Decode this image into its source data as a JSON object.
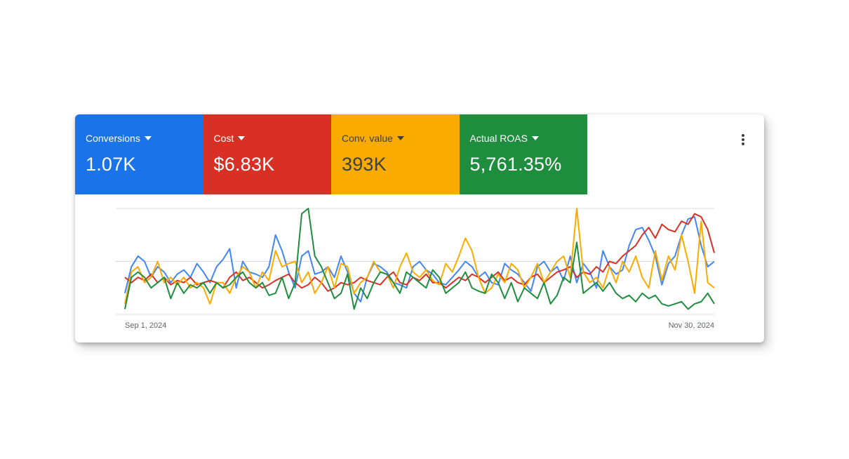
{
  "metrics": [
    {
      "label": "Conversions",
      "value": "1.07K",
      "color": "#1a73e8",
      "text_color": "#ffffff"
    },
    {
      "label": "Cost",
      "value": "$6.83K",
      "color": "#d93025",
      "text_color": "#ffffff"
    },
    {
      "label": "Conv. value",
      "value": "393K",
      "color": "#f9ab00",
      "text_color": "#3c4043"
    },
    {
      "label": "Actual ROAS",
      "value": "5,761.35%",
      "color": "#1e8e3e",
      "text_color": "#ffffff"
    }
  ],
  "chart_data": {
    "type": "line",
    "categories": [
      "Sep 1, 2024",
      null,
      null,
      null,
      null,
      null,
      null,
      null,
      null,
      null,
      null,
      null,
      null,
      null,
      null,
      null,
      null,
      null,
      null,
      null,
      null,
      null,
      null,
      null,
      null,
      null,
      null,
      null,
      null,
      null,
      null,
      null,
      null,
      null,
      null,
      null,
      null,
      null,
      null,
      null,
      null,
      null,
      null,
      null,
      null,
      null,
      null,
      null,
      null,
      null,
      null,
      null,
      null,
      null,
      null,
      null,
      null,
      null,
      null,
      null,
      null,
      null,
      null,
      null,
      null,
      null,
      null,
      null,
      null,
      null,
      null,
      null,
      null,
      null,
      null,
      null,
      null,
      null,
      null,
      null,
      null,
      null,
      null,
      null,
      null,
      null,
      null,
      null,
      null,
      null,
      "Nov 30, 2024"
    ],
    "ylim": [
      0,
      100
    ],
    "gridlines": [
      0,
      50,
      100
    ],
    "grid": true,
    "series": [
      {
        "color": "#4285f4",
        "values": [
          20,
          45,
          55,
          50,
          35,
          45,
          40,
          30,
          38,
          42,
          35,
          48,
          40,
          30,
          45,
          52,
          62,
          25,
          50,
          40,
          38,
          35,
          45,
          75,
          60,
          40,
          25,
          55,
          60,
          38,
          40,
          45,
          35,
          55,
          40,
          20,
          12,
          35,
          48,
          45,
          40,
          30,
          28,
          25,
          45,
          50,
          42,
          38,
          30,
          28,
          35,
          42,
          50,
          45,
          35,
          40,
          30,
          28,
          48,
          42,
          38,
          30,
          22,
          45,
          50,
          40,
          45,
          32,
          55,
          30,
          48,
          40,
          25,
          60,
          45,
          38,
          42,
          65,
          80,
          82,
          70,
          55,
          28,
          48,
          55,
          75,
          90,
          92,
          65,
          45,
          50
        ]
      },
      {
        "color": "#d93025",
        "values": [
          35,
          30,
          35,
          32,
          38,
          30,
          35,
          28,
          32,
          30,
          35,
          28,
          30,
          32,
          30,
          25,
          35,
          40,
          32,
          35,
          30,
          25,
          28,
          32,
          35,
          38,
          30,
          25,
          28,
          35,
          30,
          22,
          25,
          30,
          28,
          30,
          35,
          32,
          30,
          28,
          35,
          40,
          30,
          28,
          35,
          32,
          38,
          30,
          30,
          25,
          30,
          35,
          32,
          38,
          35,
          30,
          35,
          40,
          32,
          35,
          30,
          28,
          35,
          38,
          30,
          35,
          40,
          42,
          45,
          35,
          40,
          38,
          45,
          40,
          50,
          48,
          55,
          60,
          65,
          75,
          82,
          72,
          85,
          80,
          78,
          88,
          85,
          95,
          92,
          80,
          58
        ]
      },
      {
        "color": "#f9ab00",
        "values": [
          10,
          40,
          45,
          30,
          35,
          50,
          30,
          35,
          28,
          35,
          25,
          30,
          25,
          10,
          30,
          30,
          20,
          35,
          45,
          40,
          25,
          40,
          32,
          60,
          45,
          48,
          50,
          30,
          40,
          20,
          30,
          45,
          25,
          48,
          45,
          20,
          30,
          35,
          50,
          40,
          38,
          25,
          45,
          58,
          40,
          35,
          42,
          32,
          28,
          48,
          40,
          55,
          72,
          60,
          35,
          20,
          25,
          38,
          30,
          48,
          42,
          25,
          35,
          48,
          30,
          40,
          50,
          55,
          35,
          100,
          40,
          30,
          35,
          25,
          45,
          30,
          50,
          40,
          55,
          35,
          25,
          60,
          32,
          55,
          42,
          75,
          50,
          20,
          88,
          30,
          25
        ]
      },
      {
        "color": "#1e8e3e",
        "values": [
          5,
          35,
          40,
          35,
          25,
          30,
          35,
          15,
          30,
          20,
          28,
          25,
          30,
          20,
          30,
          25,
          28,
          35,
          40,
          30,
          25,
          30,
          18,
          20,
          35,
          15,
          30,
          95,
          100,
          55,
          45,
          30,
          15,
          20,
          38,
          5,
          25,
          15,
          30,
          40,
          38,
          30,
          20,
          40,
          35,
          30,
          25,
          42,
          35,
          20,
          25,
          30,
          40,
          25,
          22,
          20,
          38,
          30,
          15,
          30,
          12,
          25,
          20,
          15,
          30,
          10,
          18,
          35,
          30,
          68,
          20,
          25,
          30,
          22,
          30,
          20,
          15,
          18,
          12,
          20,
          15,
          18,
          10,
          8,
          10,
          12,
          5,
          10,
          12,
          20,
          10
        ]
      }
    ]
  }
}
